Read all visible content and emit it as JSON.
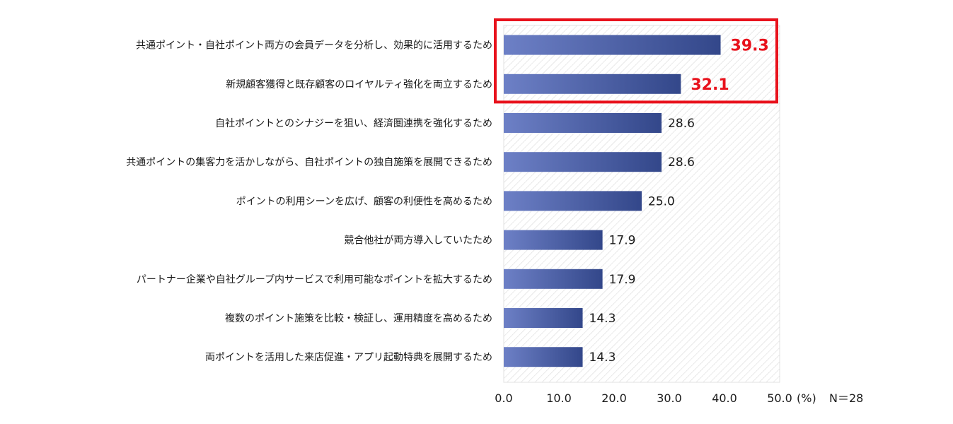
{
  "chart_data": {
    "type": "bar",
    "orientation": "horizontal",
    "categories": [
      "共通ポイント・自社ポイント両方の会員データを分析し、効果的に活用するため",
      "新規顧客獲得と既存顧客のロイヤルティ強化を両立するため",
      "自社ポイントとのシナジーを狙い、経済圏連携を強化するため",
      "共通ポイントの集客力を活かしながら、自社ポイントの独自施策を展開できるため",
      "ポイントの利用シーンを広げ、顧客の利便性を高めるため",
      "競合他社が両方導入していたため",
      "パートナー企業や自社グループ内サービスで利用可能なポイントを拡大するため",
      "複数のポイント施策を比較・検証し、運用精度を高めるため",
      "両ポイントを活用した来店促進・アプリ起動特典を展開するため"
    ],
    "values": [
      39.3,
      32.1,
      28.6,
      28.6,
      25.0,
      17.9,
      17.9,
      14.3,
      14.3
    ],
    "value_labels": [
      "39.3",
      "32.1",
      "28.6",
      "28.6",
      "25.0",
      "17.9",
      "17.9",
      "14.3",
      "14.3"
    ],
    "highlighted": [
      0,
      1
    ],
    "xlim": [
      0,
      50
    ],
    "xticks": [
      "0.0",
      "10.0",
      "20.0",
      "30.0",
      "40.0",
      "50.0"
    ],
    "unit": "(%)",
    "sample_note": "N＝28",
    "grid": false,
    "legend": "none",
    "colors": {
      "bar_start": "#6d80c6",
      "bar_end": "#33478a",
      "highlight_box": "#e8121c",
      "highlight_text": "#e8121c",
      "plot_hatch": "#d4d4d4"
    }
  }
}
